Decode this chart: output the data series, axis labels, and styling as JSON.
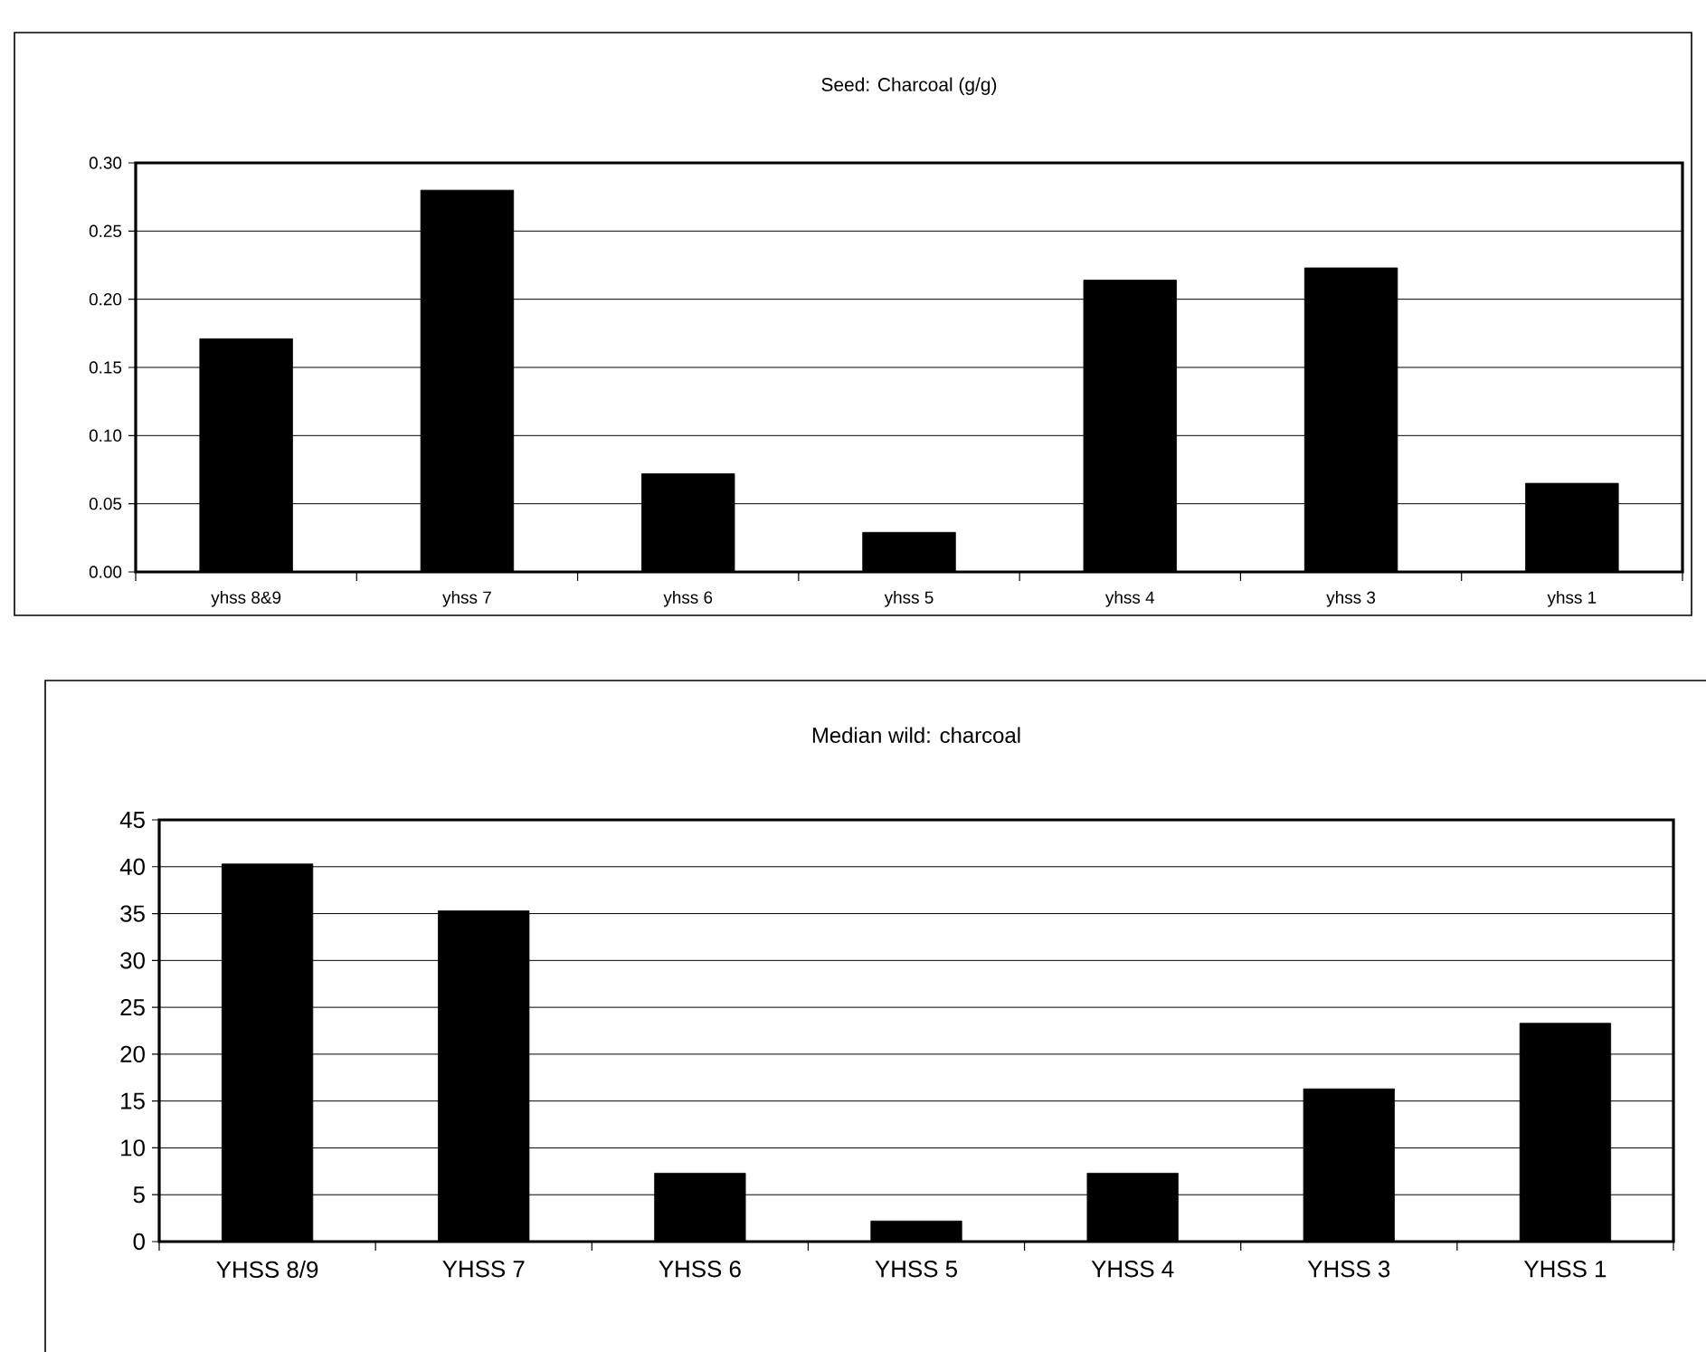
{
  "chart_data": [
    {
      "type": "bar",
      "title": "Seed: Charcoal (g/g)",
      "categories": [
        "yhss 8&9",
        "yhss 7",
        "yhss 6",
        "yhss 5",
        "yhss 4",
        "yhss 3",
        "yhss 1"
      ],
      "values": [
        0.171,
        0.28,
        0.072,
        0.029,
        0.214,
        0.223,
        0.065
      ],
      "color": "#000000",
      "ylim": [
        0,
        0.3
      ],
      "yticks": [
        {
          "value": 0,
          "label": "0.00"
        },
        {
          "value": 0.05,
          "label": "0.05"
        },
        {
          "value": 0.1,
          "label": "0.10"
        },
        {
          "value": 0.15,
          "label": "0.15"
        },
        {
          "value": 0.2,
          "label": "0.20"
        },
        {
          "value": 0.25,
          "label": "0.25"
        },
        {
          "value": 0.3,
          "label": "0.30"
        }
      ],
      "grid": "y"
    },
    {
      "type": "bar",
      "title": "Median wild: charcoal",
      "categories": [
        "YHSS 8/9",
        "YHSS 7",
        "YHSS 6",
        "YHSS 5",
        "YHSS 4",
        "YHSS 3",
        "YHSS 1"
      ],
      "values": [
        40.3,
        35.3,
        7.3,
        2.2,
        7.3,
        16.3,
        23.3
      ],
      "color": "#000000",
      "ylim": [
        0,
        45
      ],
      "yticks": [
        0,
        5,
        10,
        15,
        20,
        25,
        30,
        35,
        40,
        45
      ],
      "grid": "y"
    }
  ]
}
